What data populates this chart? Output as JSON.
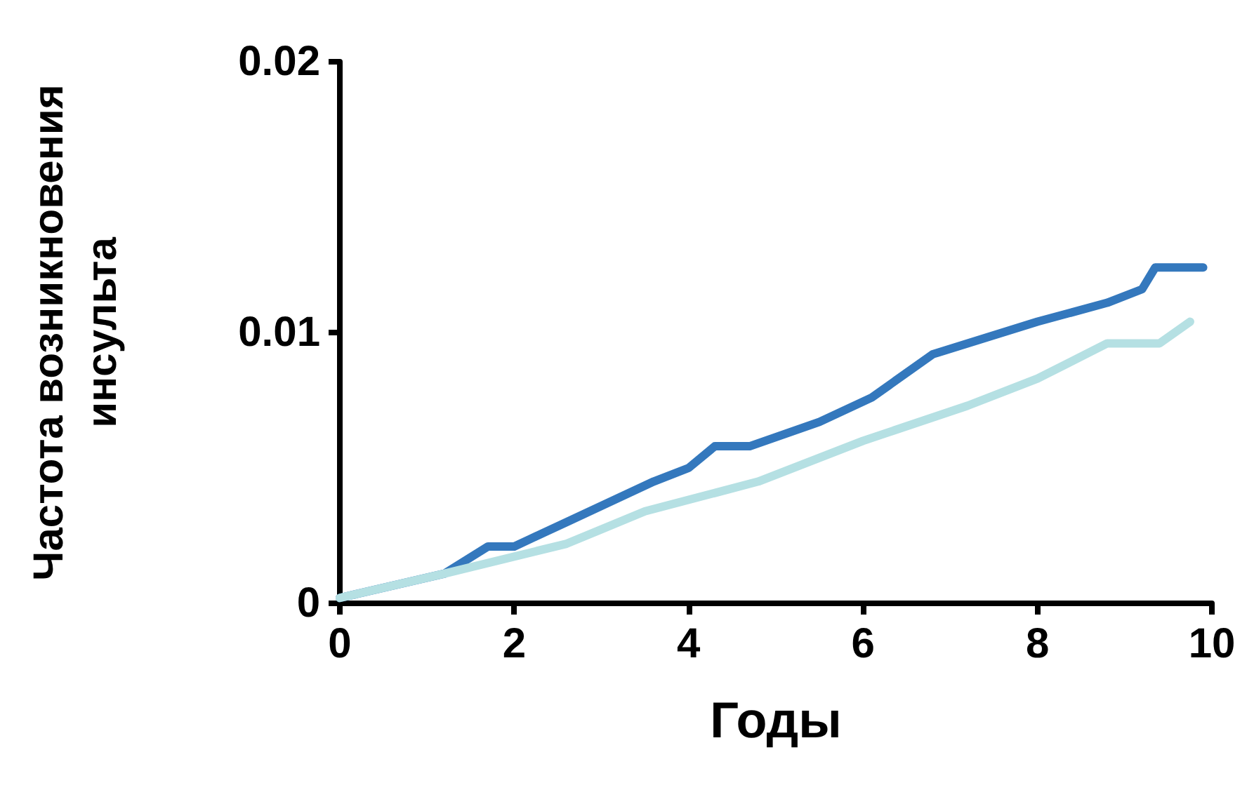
{
  "chart_data": {
    "type": "line",
    "xlabel": "Годы",
    "ylabel": "Частота возникновения\nинсульта",
    "xlim": [
      0,
      10
    ],
    "ylim": [
      0,
      0.02
    ],
    "xticks": [
      0,
      2,
      4,
      6,
      8,
      10
    ],
    "yticks": [
      0,
      0.01,
      0.02
    ],
    "grid": false,
    "marker": "none",
    "line_style": "solid",
    "series": [
      {
        "color": "#3478bd",
        "x": [
          0,
          1.2,
          1.7,
          2.0,
          2.6,
          3.6,
          4.0,
          4.3,
          4.7,
          5.5,
          6.1,
          6.8,
          8.0,
          8.8,
          9.2,
          9.35,
          9.9
        ],
        "values": [
          0.0002,
          0.0011,
          0.0021,
          0.0021,
          0.003,
          0.0045,
          0.005,
          0.0058,
          0.0058,
          0.0067,
          0.0076,
          0.0092,
          0.0104,
          0.0111,
          0.0116,
          0.0124,
          0.0124
        ]
      },
      {
        "color": "#b5e0e3",
        "x": [
          0,
          1.2,
          2.6,
          3.5,
          4.8,
          6.0,
          7.2,
          8.0,
          8.8,
          9.4,
          9.75
        ],
        "values": [
          0.0002,
          0.0011,
          0.0022,
          0.0034,
          0.0045,
          0.006,
          0.0073,
          0.0083,
          0.0096,
          0.0096,
          0.0104
        ]
      }
    ]
  }
}
